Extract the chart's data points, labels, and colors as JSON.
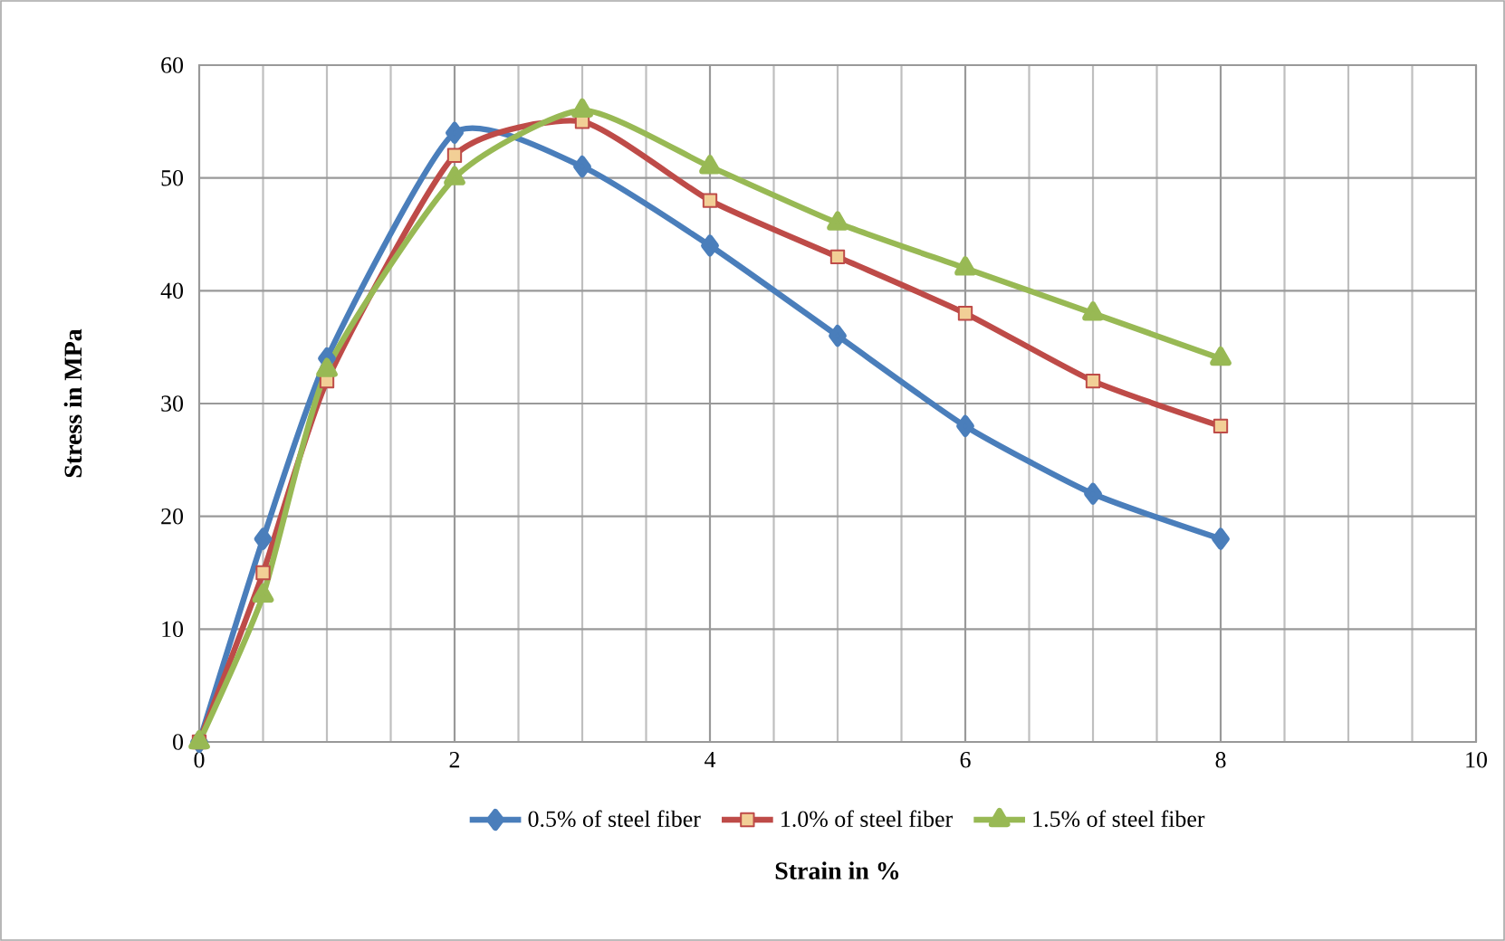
{
  "chart_data": {
    "type": "line",
    "xlabel": "Strain in %",
    "ylabel": "Stress in MPa",
    "xlim": [
      0,
      10
    ],
    "xticks": [
      0,
      2,
      4,
      6,
      8,
      10
    ],
    "ylim": [
      0,
      60
    ],
    "yticks": [
      0,
      10,
      20,
      30,
      40,
      50,
      60
    ],
    "grid": true,
    "legend": "bottom",
    "series": [
      {
        "name": "0.5% of steel fiber",
        "color": "#4a7ebb",
        "marker": "diamond",
        "x": [
          0,
          0.5,
          1,
          2,
          3,
          4,
          5,
          6,
          7,
          8
        ],
        "values": [
          0,
          18,
          34,
          54,
          51,
          44,
          36,
          28,
          22,
          18
        ]
      },
      {
        "name": "1.0% of steel fiber",
        "color": "#be4b48",
        "marker": "square",
        "x": [
          0,
          0.5,
          1,
          2,
          3,
          4,
          5,
          6,
          7,
          8
        ],
        "values": [
          0,
          15,
          32,
          52,
          55,
          48,
          43,
          38,
          32,
          28
        ]
      },
      {
        "name": "1.5% of steel fiber",
        "color": "#98b954",
        "marker": "triangle",
        "x": [
          0,
          0.5,
          1,
          2,
          3,
          4,
          5,
          6,
          7,
          8
        ],
        "values": [
          0,
          13,
          33,
          50,
          56,
          51,
          46,
          42,
          38,
          34
        ]
      }
    ]
  }
}
